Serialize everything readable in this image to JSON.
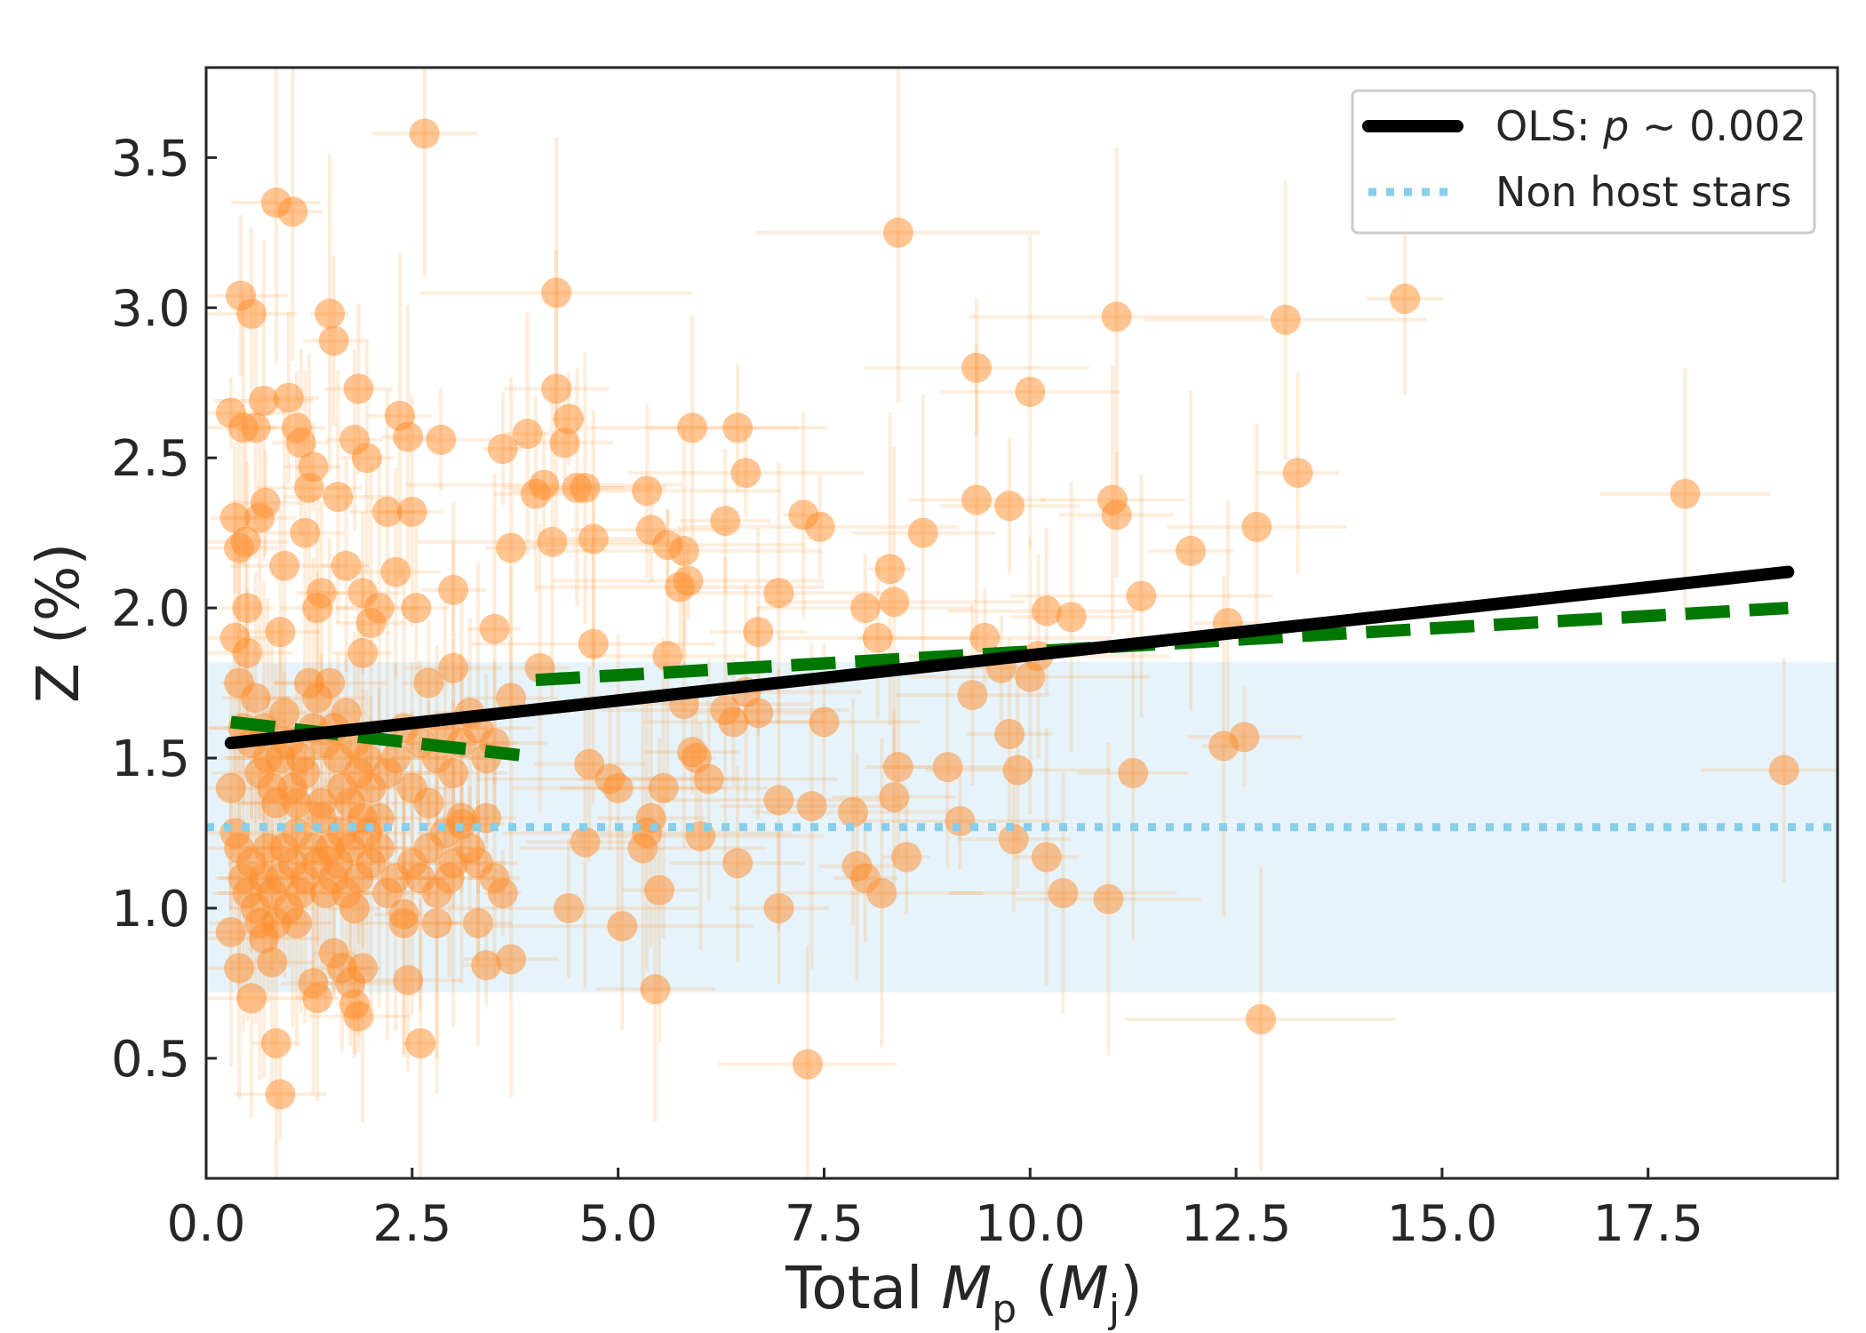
{
  "chart_data": {
    "type": "scatter",
    "xlabel": {
      "prefix": "Total ",
      "m": "M",
      "m_sub": "p",
      "open": " (",
      "unit": "M",
      "unit_sub": "j",
      "close": ")"
    },
    "ylabel": "Z (%)",
    "xlim": [
      0.0,
      19.8
    ],
    "ylim": [
      0.1,
      3.8
    ],
    "x_ticks": [
      0.0,
      2.5,
      5.0,
      7.5,
      10.0,
      12.5,
      15.0,
      17.5
    ],
    "x_tick_labels": [
      "0.0",
      "2.5",
      "5.0",
      "7.5",
      "10.0",
      "12.5",
      "15.0",
      "17.5"
    ],
    "y_ticks": [
      0.5,
      1.0,
      1.5,
      2.0,
      2.5,
      3.0,
      3.5
    ],
    "y_tick_labels": [
      "0.5",
      "1.0",
      "1.5",
      "2.0",
      "2.5",
      "3.0",
      "3.5"
    ],
    "grid": false,
    "legend": {
      "position": "top-right",
      "entries": [
        {
          "name": "ols",
          "label_prefix": "OLS: ",
          "label_italic": "p",
          "label_suffix": " ~ 0.002",
          "style": "solid",
          "color": "#000000"
        },
        {
          "name": "non-host",
          "label": "Non host stars",
          "style": "dotted",
          "color": "#87CEEB"
        }
      ]
    },
    "colors": {
      "points": "#FF8C28",
      "ols": "#000000",
      "piecewise": "#007700",
      "non_host_line": "#87CEEB",
      "non_host_band": "#E6F3FA"
    },
    "non_host_stars": {
      "mean": 1.27,
      "band": [
        0.72,
        1.82
      ]
    },
    "ols_fit": {
      "x": [
        0.3,
        19.2
      ],
      "y": [
        1.55,
        2.12
      ]
    },
    "piecewise_fit": [
      {
        "x": [
          0.3,
          3.8
        ],
        "y": [
          1.62,
          1.51
        ]
      },
      {
        "x": [
          4.0,
          19.2
        ],
        "y": [
          1.76,
          2.0
        ]
      }
    ],
    "points": [
      [
        0.3,
        2.65
      ],
      [
        0.35,
        2.3
      ],
      [
        0.4,
        2.2
      ],
      [
        0.42,
        3.04
      ],
      [
        0.45,
        2.6
      ],
      [
        0.48,
        2.22
      ],
      [
        0.5,
        2.0
      ],
      [
        0.55,
        2.98
      ],
      [
        0.6,
        2.6
      ],
      [
        0.65,
        2.3
      ],
      [
        0.7,
        2.69
      ],
      [
        0.72,
        2.35
      ],
      [
        0.85,
        3.35
      ],
      [
        0.9,
        1.92
      ],
      [
        0.95,
        2.14
      ],
      [
        1.0,
        2.7
      ],
      [
        1.05,
        3.32
      ],
      [
        1.1,
        2.6
      ],
      [
        1.15,
        2.55
      ],
      [
        1.2,
        2.25
      ],
      [
        1.25,
        2.4
      ],
      [
        1.3,
        2.47
      ],
      [
        1.35,
        2.0
      ],
      [
        1.4,
        2.05
      ],
      [
        1.5,
        2.98
      ],
      [
        1.55,
        2.89
      ],
      [
        1.6,
        2.37
      ],
      [
        1.7,
        2.14
      ],
      [
        1.8,
        2.56
      ],
      [
        1.85,
        2.73
      ],
      [
        1.9,
        2.05
      ],
      [
        1.95,
        2.5
      ],
      [
        2.0,
        1.95
      ],
      [
        2.1,
        2.0
      ],
      [
        2.2,
        2.32
      ],
      [
        2.3,
        2.12
      ],
      [
        2.35,
        2.64
      ],
      [
        2.45,
        2.57
      ],
      [
        2.5,
        2.32
      ],
      [
        2.55,
        2.0
      ],
      [
        2.65,
        3.58
      ],
      [
        2.85,
        2.56
      ],
      [
        3.0,
        2.06
      ],
      [
        3.6,
        2.53
      ],
      [
        3.7,
        2.2
      ],
      [
        3.9,
        2.58
      ],
      [
        4.0,
        2.38
      ],
      [
        4.1,
        2.41
      ],
      [
        4.2,
        2.22
      ],
      [
        4.25,
        3.05
      ],
      [
        4.25,
        2.73
      ],
      [
        4.35,
        2.55
      ],
      [
        4.4,
        2.63
      ],
      [
        4.5,
        2.4
      ],
      [
        4.6,
        2.4
      ],
      [
        4.7,
        2.23
      ],
      [
        3.5,
        1.93
      ],
      [
        5.35,
        2.39
      ],
      [
        5.4,
        2.26
      ],
      [
        5.6,
        2.21
      ],
      [
        5.8,
        2.19
      ],
      [
        5.85,
        2.09
      ],
      [
        5.75,
        2.07
      ],
      [
        5.9,
        2.6
      ],
      [
        6.3,
        2.29
      ],
      [
        6.45,
        2.6
      ],
      [
        6.55,
        2.45
      ],
      [
        6.95,
        2.05
      ],
      [
        7.25,
        2.31
      ],
      [
        7.45,
        2.27
      ],
      [
        8.0,
        2.0
      ],
      [
        8.3,
        2.13
      ],
      [
        8.35,
        2.02
      ],
      [
        8.4,
        3.25
      ],
      [
        8.7,
        2.25
      ],
      [
        9.35,
        2.8
      ],
      [
        9.35,
        2.36
      ],
      [
        9.75,
        2.34
      ],
      [
        10.0,
        2.72
      ],
      [
        10.2,
        1.99
      ],
      [
        10.5,
        1.97
      ],
      [
        11.0,
        2.36
      ],
      [
        11.05,
        2.31
      ],
      [
        11.05,
        2.97
      ],
      [
        11.35,
        2.04
      ],
      [
        11.95,
        2.19
      ],
      [
        12.4,
        1.95
      ],
      [
        12.75,
        2.27
      ],
      [
        13.1,
        2.96
      ],
      [
        13.25,
        2.45
      ],
      [
        14.55,
        3.03
      ],
      [
        17.95,
        2.38
      ],
      [
        19.15,
        1.46
      ],
      [
        0.35,
        1.9
      ],
      [
        0.4,
        1.75
      ],
      [
        0.45,
        1.6
      ],
      [
        0.5,
        1.85
      ],
      [
        0.55,
        1.55
      ],
      [
        0.6,
        1.7
      ],
      [
        0.65,
        1.45
      ],
      [
        0.7,
        1.6
      ],
      [
        0.75,
        1.5
      ],
      [
        0.8,
        1.4
      ],
      [
        0.85,
        1.35
      ],
      [
        0.9,
        1.5
      ],
      [
        0.95,
        1.65
      ],
      [
        1.0,
        1.55
      ],
      [
        1.05,
        1.4
      ],
      [
        1.1,
        1.35
      ],
      [
        1.15,
        1.5
      ],
      [
        1.2,
        1.45
      ],
      [
        1.25,
        1.75
      ],
      [
        1.3,
        1.6
      ],
      [
        1.35,
        1.7
      ],
      [
        1.4,
        1.35
      ],
      [
        1.45,
        1.55
      ],
      [
        1.5,
        1.75
      ],
      [
        1.55,
        1.6
      ],
      [
        1.6,
        1.5
      ],
      [
        1.65,
        1.4
      ],
      [
        1.7,
        1.65
      ],
      [
        1.75,
        1.35
      ],
      [
        1.8,
        1.55
      ],
      [
        1.85,
        1.45
      ],
      [
        1.9,
        1.85
      ],
      [
        1.95,
        1.5
      ],
      [
        2.0,
        1.4
      ],
      [
        2.1,
        1.3
      ],
      [
        2.2,
        1.45
      ],
      [
        2.3,
        1.5
      ],
      [
        2.4,
        1.6
      ],
      [
        2.5,
        1.4
      ],
      [
        2.6,
        1.55
      ],
      [
        2.7,
        1.35
      ],
      [
        2.8,
        1.5
      ],
      [
        2.9,
        1.6
      ],
      [
        3.0,
        1.45
      ],
      [
        3.1,
        1.55
      ],
      [
        3.2,
        1.65
      ],
      [
        3.3,
        1.6
      ],
      [
        3.4,
        1.5
      ],
      [
        3.5,
        1.55
      ],
      [
        3.7,
        1.7
      ],
      [
        3.0,
        1.8
      ],
      [
        2.7,
        1.75
      ],
      [
        4.05,
        1.8
      ],
      [
        4.7,
        1.88
      ],
      [
        0.3,
        1.4
      ],
      [
        0.35,
        1.25
      ],
      [
        0.4,
        1.2
      ],
      [
        0.45,
        1.1
      ],
      [
        0.5,
        1.05
      ],
      [
        0.55,
        1.15
      ],
      [
        0.6,
        1.0
      ],
      [
        0.65,
        0.95
      ],
      [
        0.7,
        1.1
      ],
      [
        0.75,
        1.2
      ],
      [
        0.8,
        1.05
      ],
      [
        0.85,
        0.95
      ],
      [
        0.9,
        1.1
      ],
      [
        0.95,
        1.2
      ],
      [
        1.0,
        1.0
      ],
      [
        1.05,
        1.15
      ],
      [
        1.1,
        1.25
      ],
      [
        1.15,
        1.05
      ],
      [
        1.2,
        1.1
      ],
      [
        1.3,
        1.2
      ],
      [
        1.35,
        1.15
      ],
      [
        1.4,
        1.3
      ],
      [
        1.45,
        1.05
      ],
      [
        1.5,
        1.2
      ],
      [
        1.55,
        1.1
      ],
      [
        1.6,
        1.15
      ],
      [
        1.65,
        1.25
      ],
      [
        1.7,
        1.05
      ],
      [
        1.75,
        1.2
      ],
      [
        1.8,
        1.0
      ],
      [
        1.85,
        1.1
      ],
      [
        1.9,
        1.3
      ],
      [
        1.95,
        1.25
      ],
      [
        2.0,
        1.15
      ],
      [
        2.1,
        1.2
      ],
      [
        2.2,
        1.05
      ],
      [
        2.3,
        1.1
      ],
      [
        2.4,
        0.95
      ],
      [
        2.5,
        1.15
      ],
      [
        2.6,
        1.1
      ],
      [
        2.7,
        1.2
      ],
      [
        2.8,
        1.05
      ],
      [
        2.9,
        1.25
      ],
      [
        3.0,
        1.15
      ],
      [
        3.1,
        1.3
      ],
      [
        3.2,
        1.2
      ],
      [
        3.3,
        1.15
      ],
      [
        3.4,
        1.3
      ],
      [
        3.5,
        1.1
      ],
      [
        3.6,
        1.05
      ],
      [
        3.1,
        1.28
      ],
      [
        2.95,
        1.1
      ],
      [
        0.3,
        0.92
      ],
      [
        0.4,
        0.8
      ],
      [
        0.55,
        0.7
      ],
      [
        0.7,
        0.9
      ],
      [
        0.8,
        0.82
      ],
      [
        0.85,
        0.55
      ],
      [
        0.9,
        0.38
      ],
      [
        1.1,
        0.95
      ],
      [
        1.3,
        0.75
      ],
      [
        1.35,
        0.7
      ],
      [
        1.55,
        0.85
      ],
      [
        1.65,
        0.8
      ],
      [
        1.75,
        0.75
      ],
      [
        1.8,
        0.68
      ],
      [
        1.85,
        0.64
      ],
      [
        1.9,
        0.8
      ],
      [
        2.4,
        0.98
      ],
      [
        2.45,
        0.76
      ],
      [
        2.6,
        0.55
      ],
      [
        2.8,
        0.95
      ],
      [
        3.3,
        0.95
      ],
      [
        3.4,
        0.81
      ],
      [
        3.7,
        0.83
      ],
      [
        4.4,
        1.0
      ],
      [
        4.6,
        1.22
      ],
      [
        4.65,
        1.48
      ],
      [
        4.9,
        1.43
      ],
      [
        5.0,
        1.4
      ],
      [
        5.05,
        0.94
      ],
      [
        5.3,
        1.2
      ],
      [
        5.35,
        1.25
      ],
      [
        5.4,
        1.3
      ],
      [
        5.45,
        0.73
      ],
      [
        5.5,
        1.06
      ],
      [
        5.55,
        1.4
      ],
      [
        5.6,
        1.84
      ],
      [
        5.8,
        1.68
      ],
      [
        5.9,
        1.52
      ],
      [
        5.95,
        1.5
      ],
      [
        6.0,
        1.24
      ],
      [
        6.1,
        1.43
      ],
      [
        6.3,
        1.66
      ],
      [
        6.4,
        1.62
      ],
      [
        6.45,
        1.15
      ],
      [
        6.55,
        1.72
      ],
      [
        6.7,
        1.65
      ],
      [
        6.7,
        1.92
      ],
      [
        6.95,
        1.36
      ],
      [
        6.95,
        1.0
      ],
      [
        7.3,
        0.48
      ],
      [
        7.35,
        1.34
      ],
      [
        7.5,
        1.62
      ],
      [
        7.85,
        1.32
      ],
      [
        7.9,
        1.14
      ],
      [
        8.0,
        1.1
      ],
      [
        8.15,
        1.9
      ],
      [
        8.2,
        1.05
      ],
      [
        8.35,
        1.37
      ],
      [
        8.4,
        1.47
      ],
      [
        8.5,
        1.17
      ],
      [
        9.0,
        1.47
      ],
      [
        9.15,
        1.29
      ],
      [
        9.3,
        1.71
      ],
      [
        9.45,
        1.9
      ],
      [
        9.8,
        1.23
      ],
      [
        9.65,
        1.8
      ],
      [
        9.75,
        1.58
      ],
      [
        9.85,
        1.46
      ],
      [
        10.0,
        1.77
      ],
      [
        10.1,
        1.84
      ],
      [
        10.2,
        1.17
      ],
      [
        10.4,
        1.05
      ],
      [
        10.95,
        1.03
      ],
      [
        11.25,
        1.45
      ],
      [
        12.35,
        1.54
      ],
      [
        12.6,
        1.57
      ],
      [
        12.8,
        0.63
      ]
    ]
  }
}
